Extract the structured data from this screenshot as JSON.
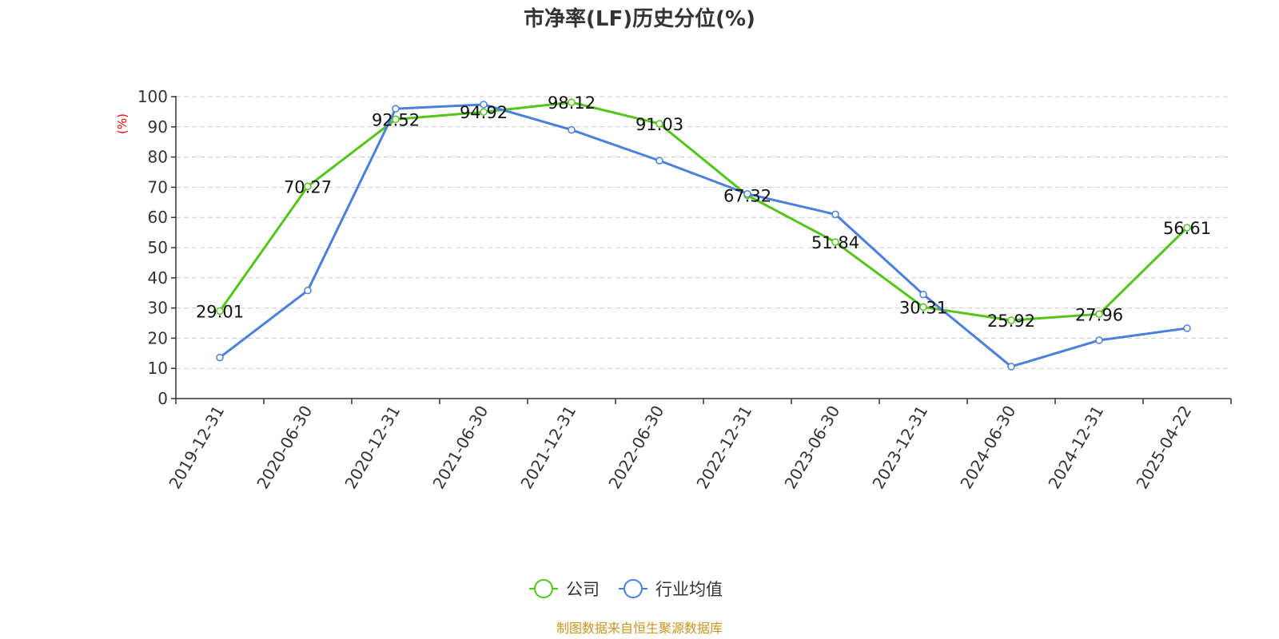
{
  "chart_data": {
    "type": "line",
    "title": "市净率(LF)历史分位(%)",
    "ylabel": "(%)",
    "xlabel": "",
    "ylim": [
      0,
      100
    ],
    "yticks": [
      0,
      10,
      20,
      30,
      40,
      50,
      60,
      70,
      80,
      90,
      100
    ],
    "grid": true,
    "legend_position": "bottom-center",
    "categories": [
      "2019-12-31",
      "2020-06-30",
      "2020-12-31",
      "2021-06-30",
      "2021-12-31",
      "2022-06-30",
      "2022-12-31",
      "2023-06-30",
      "2023-12-31",
      "2024-06-30",
      "2024-12-31",
      "2025-04-22"
    ],
    "series": [
      {
        "name": "公司",
        "color": "#52c41a",
        "show_labels": true,
        "values": [
          29.01,
          70.27,
          92.52,
          94.92,
          98.12,
          91.03,
          67.32,
          51.84,
          30.31,
          25.92,
          27.96,
          56.61
        ]
      },
      {
        "name": "行业均值",
        "color": "#4a7fdc",
        "show_labels": false,
        "values": [
          13.6,
          35.8,
          96.0,
          97.4,
          89.0,
          78.8,
          67.8,
          61.0,
          34.5,
          10.6,
          19.3,
          23.3
        ]
      }
    ]
  },
  "source": "制图数据来自恒生聚源数据库"
}
